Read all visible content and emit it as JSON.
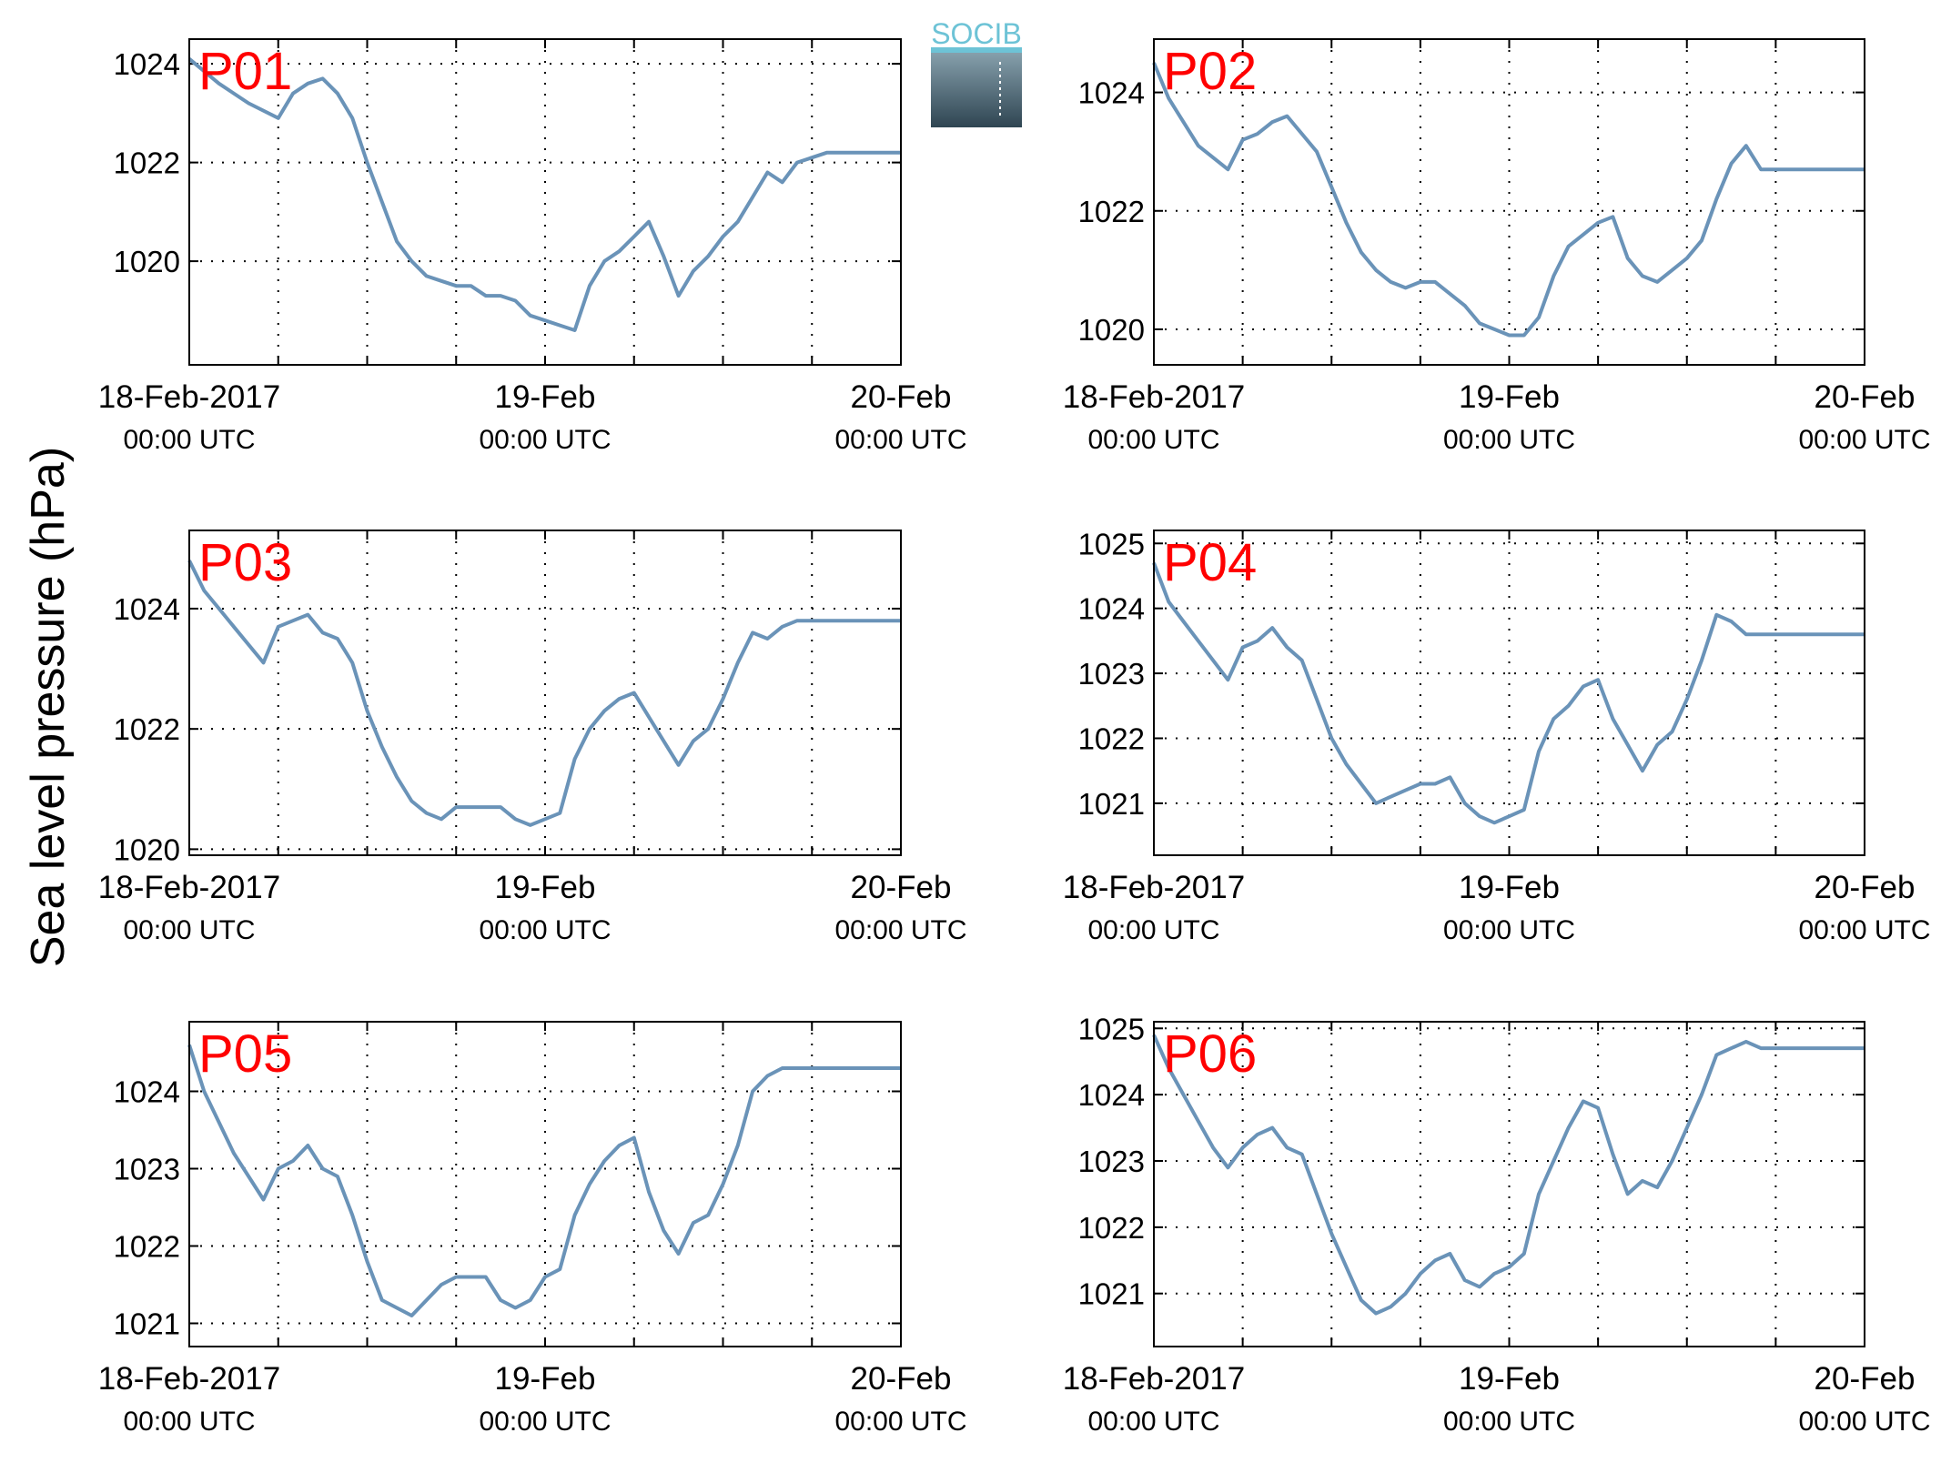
{
  "figure": {
    "ylabel": "Sea level pressure (hPa)",
    "logo_text": "SOCIB",
    "colors": {
      "line": "#6a93b8",
      "station_label": "#ff0000",
      "axis": "#000000",
      "grid": "#000000"
    }
  },
  "x_ticks": {
    "dates": [
      "18-Feb-2017",
      "19-Feb",
      "20-Feb"
    ],
    "times": [
      "00:00 UTC",
      "00:00 UTC",
      "00:00 UTC"
    ]
  },
  "chart_data": [
    {
      "type": "line",
      "station": "P01",
      "xlabel": "",
      "ylabel": "Sea level pressure (hPa)",
      "x_range_hours": [
        0,
        48
      ],
      "ylim": [
        1017.9,
        1024.5
      ],
      "yticks": [
        1020,
        1022,
        1024
      ],
      "grid": true,
      "series": [
        {
          "x_hours": [
            0,
            2,
            4,
            6,
            7,
            8,
            9,
            10,
            11,
            12,
            13,
            14,
            15,
            16,
            17,
            18,
            19,
            20,
            21,
            22,
            23,
            24,
            25,
            26,
            27,
            28,
            29,
            30,
            31,
            32,
            33,
            34,
            35,
            36,
            37,
            38,
            39,
            40,
            41,
            42,
            43,
            44,
            45,
            46,
            47,
            48
          ],
          "y": [
            1024.1,
            1023.6,
            1023.2,
            1022.9,
            1023.4,
            1023.6,
            1023.7,
            1023.4,
            1022.9,
            1022.0,
            1021.2,
            1020.4,
            1020.0,
            1019.7,
            1019.6,
            1019.5,
            1019.5,
            1019.3,
            1019.3,
            1019.2,
            1018.9,
            1018.8,
            1018.7,
            1018.6,
            1019.5,
            1020.0,
            1020.2,
            1020.5,
            1020.8,
            1020.1,
            1019.3,
            1019.8,
            1020.1,
            1020.5,
            1020.8,
            1021.3,
            1021.8,
            1021.6,
            1022.0,
            1022.1,
            1022.2,
            1022.2,
            1022.2,
            1022.2,
            1022.2,
            1022.2
          ]
        }
      ]
    },
    {
      "type": "line",
      "station": "P02",
      "xlabel": "",
      "ylabel": "Sea level pressure (hPa)",
      "x_range_hours": [
        0,
        48
      ],
      "ylim": [
        1019.4,
        1024.9
      ],
      "yticks": [
        1020,
        1022,
        1024
      ],
      "grid": true,
      "series": [
        {
          "x_hours": [
            0,
            1,
            2,
            3,
            4,
            5,
            6,
            7,
            8,
            9,
            10,
            11,
            12,
            13,
            14,
            15,
            16,
            17,
            18,
            19,
            20,
            21,
            22,
            23,
            24,
            25,
            26,
            27,
            28,
            29,
            30,
            31,
            32,
            33,
            34,
            35,
            36,
            37,
            38,
            39,
            40,
            41,
            42,
            43,
            44,
            45,
            46,
            47,
            48
          ],
          "y": [
            1024.5,
            1023.9,
            1023.5,
            1023.1,
            1022.9,
            1022.7,
            1023.2,
            1023.3,
            1023.5,
            1023.6,
            1023.3,
            1023.0,
            1022.4,
            1021.8,
            1021.3,
            1021.0,
            1020.8,
            1020.7,
            1020.8,
            1020.8,
            1020.6,
            1020.4,
            1020.1,
            1020.0,
            1019.9,
            1019.9,
            1020.2,
            1020.9,
            1021.4,
            1021.6,
            1021.8,
            1021.9,
            1021.2,
            1020.9,
            1020.8,
            1021.0,
            1021.2,
            1021.5,
            1022.2,
            1022.8,
            1023.1,
            1022.7,
            1022.7,
            1022.7,
            1022.7,
            1022.7,
            1022.7,
            1022.7,
            1022.7
          ]
        }
      ]
    },
    {
      "type": "line",
      "station": "P03",
      "xlabel": "",
      "ylabel": "Sea level pressure (hPa)",
      "x_range_hours": [
        0,
        48
      ],
      "ylim": [
        1019.9,
        1025.3
      ],
      "yticks": [
        1020,
        1022,
        1024
      ],
      "grid": true,
      "series": [
        {
          "x_hours": [
            0,
            1,
            2,
            3,
            4,
            5,
            6,
            7,
            8,
            9,
            10,
            11,
            12,
            13,
            14,
            15,
            16,
            17,
            18,
            19,
            20,
            21,
            22,
            23,
            24,
            25,
            26,
            27,
            28,
            29,
            30,
            31,
            32,
            33,
            34,
            35,
            36,
            37,
            38,
            39,
            40,
            41,
            42,
            43,
            44,
            45,
            46,
            47,
            48
          ],
          "y": [
            1024.8,
            1024.3,
            1024.0,
            1023.7,
            1023.4,
            1023.1,
            1023.7,
            1023.8,
            1023.9,
            1023.6,
            1023.5,
            1023.1,
            1022.3,
            1021.7,
            1021.2,
            1020.8,
            1020.6,
            1020.5,
            1020.7,
            1020.7,
            1020.7,
            1020.7,
            1020.5,
            1020.4,
            1020.5,
            1020.6,
            1021.5,
            1022.0,
            1022.3,
            1022.5,
            1022.6,
            1022.2,
            1021.8,
            1021.4,
            1021.8,
            1022.0,
            1022.5,
            1023.1,
            1023.6,
            1023.5,
            1023.7,
            1023.8,
            1023.8,
            1023.8,
            1023.8,
            1023.8,
            1023.8,
            1023.8,
            1023.8
          ]
        }
      ]
    },
    {
      "type": "line",
      "station": "P04",
      "xlabel": "",
      "ylabel": "Sea level pressure (hPa)",
      "x_range_hours": [
        0,
        48
      ],
      "ylim": [
        1020.2,
        1025.2
      ],
      "yticks": [
        1021,
        1022,
        1023,
        1024,
        1025
      ],
      "grid": true,
      "series": [
        {
          "x_hours": [
            0,
            1,
            2,
            3,
            4,
            5,
            6,
            7,
            8,
            9,
            10,
            11,
            12,
            13,
            14,
            15,
            16,
            17,
            18,
            19,
            20,
            21,
            22,
            23,
            24,
            25,
            26,
            27,
            28,
            29,
            30,
            31,
            32,
            33,
            34,
            35,
            36,
            37,
            38,
            39,
            40,
            41,
            42,
            43,
            44,
            45,
            46,
            47,
            48
          ],
          "y": [
            1024.7,
            1024.1,
            1023.8,
            1023.5,
            1023.2,
            1022.9,
            1023.4,
            1023.5,
            1023.7,
            1023.4,
            1023.2,
            1022.6,
            1022.0,
            1021.6,
            1021.3,
            1021.0,
            1021.1,
            1021.2,
            1021.3,
            1021.3,
            1021.4,
            1021.0,
            1020.8,
            1020.7,
            1020.8,
            1020.9,
            1021.8,
            1022.3,
            1022.5,
            1022.8,
            1022.9,
            1022.3,
            1021.9,
            1021.5,
            1021.9,
            1022.1,
            1022.6,
            1023.2,
            1023.9,
            1023.8,
            1023.6,
            1023.6,
            1023.6,
            1023.6,
            1023.6,
            1023.6,
            1023.6,
            1023.6,
            1023.6
          ]
        }
      ]
    },
    {
      "type": "line",
      "station": "P05",
      "xlabel": "",
      "ylabel": "Sea level pressure (hPa)",
      "x_range_hours": [
        0,
        48
      ],
      "ylim": [
        1020.7,
        1024.9
      ],
      "yticks": [
        1021,
        1022,
        1023,
        1024
      ],
      "grid": true,
      "series": [
        {
          "x_hours": [
            0,
            1,
            2,
            3,
            4,
            5,
            6,
            7,
            8,
            9,
            10,
            11,
            12,
            13,
            14,
            15,
            16,
            17,
            18,
            19,
            20,
            21,
            22,
            23,
            24,
            25,
            26,
            27,
            28,
            29,
            30,
            31,
            32,
            33,
            34,
            35,
            36,
            37,
            38,
            39,
            40,
            41,
            42,
            43,
            44,
            45,
            46,
            47,
            48
          ],
          "y": [
            1024.6,
            1024.0,
            1023.6,
            1023.2,
            1022.9,
            1022.6,
            1023.0,
            1023.1,
            1023.3,
            1023.0,
            1022.9,
            1022.4,
            1021.8,
            1021.3,
            1021.2,
            1021.1,
            1021.3,
            1021.5,
            1021.6,
            1021.6,
            1021.6,
            1021.3,
            1021.2,
            1021.3,
            1021.6,
            1021.7,
            1022.4,
            1022.8,
            1023.1,
            1023.3,
            1023.4,
            1022.7,
            1022.2,
            1021.9,
            1022.3,
            1022.4,
            1022.8,
            1023.3,
            1024.0,
            1024.2,
            1024.3,
            1024.3,
            1024.3,
            1024.3,
            1024.3,
            1024.3,
            1024.3,
            1024.3,
            1024.3
          ]
        }
      ]
    },
    {
      "type": "line",
      "station": "P06",
      "xlabel": "",
      "ylabel": "Sea level pressure (hPa)",
      "x_range_hours": [
        0,
        48
      ],
      "ylim": [
        1020.2,
        1025.1
      ],
      "yticks": [
        1021,
        1022,
        1023,
        1024,
        1025
      ],
      "grid": true,
      "series": [
        {
          "x_hours": [
            0,
            1,
            2,
            3,
            4,
            5,
            6,
            7,
            8,
            9,
            10,
            11,
            12,
            13,
            14,
            15,
            16,
            17,
            18,
            19,
            20,
            21,
            22,
            23,
            24,
            25,
            26,
            27,
            28,
            29,
            30,
            31,
            32,
            33,
            34,
            35,
            36,
            37,
            38,
            39,
            40,
            41,
            42,
            43,
            44,
            45,
            46,
            47,
            48
          ],
          "y": [
            1024.9,
            1024.4,
            1024.0,
            1023.6,
            1023.2,
            1022.9,
            1023.2,
            1023.4,
            1023.5,
            1023.2,
            1023.1,
            1022.5,
            1021.9,
            1021.4,
            1020.9,
            1020.7,
            1020.8,
            1021.0,
            1021.3,
            1021.5,
            1021.6,
            1021.2,
            1021.1,
            1021.3,
            1021.4,
            1021.6,
            1022.5,
            1023.0,
            1023.5,
            1023.9,
            1023.8,
            1023.1,
            1022.5,
            1022.7,
            1022.6,
            1023.0,
            1023.5,
            1024.0,
            1024.6,
            1024.7,
            1024.8,
            1024.7,
            1024.7,
            1024.7,
            1024.7,
            1024.7,
            1024.7,
            1024.7,
            1024.7
          ]
        }
      ]
    }
  ]
}
